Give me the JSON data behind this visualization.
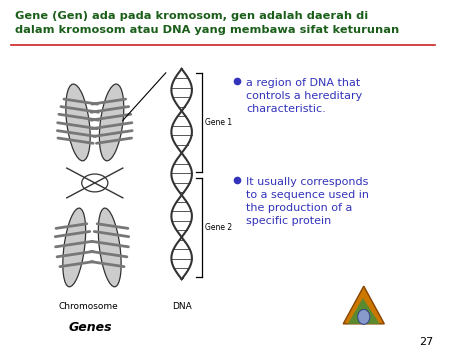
{
  "bg_color": "#ffffff",
  "title_line1": "Gene (Gen) ada pada kromosom, gen adalah daerah di",
  "title_line2": "dalam kromosom atau DNA yang membawa sifat keturunan",
  "title_color": "#1a5e1a",
  "divider_color": "#cc2222",
  "bullet1_line1": "a region of DNA that",
  "bullet1_line2": "controls a hereditary",
  "bullet1_line3": "characteristic.",
  "bullet2_line1": "It usually corresponds",
  "bullet2_line2": "to a sequence used in",
  "bullet2_line3": "the production of a",
  "bullet2_line4": "specific protein",
  "bullet_color": "#3333bb",
  "label_chromosome": "Chromosome",
  "label_dna": "DNA",
  "label_genes": "Genes",
  "label_gene1": "Gene 1",
  "label_gene2": "Gene 2",
  "label_color": "#000000",
  "genes_color": "#000000",
  "page_number": "27",
  "chrom_face": "#cccccc",
  "chrom_edge": "#333333",
  "chrom_band": "#777777",
  "dna_color": "#333333"
}
